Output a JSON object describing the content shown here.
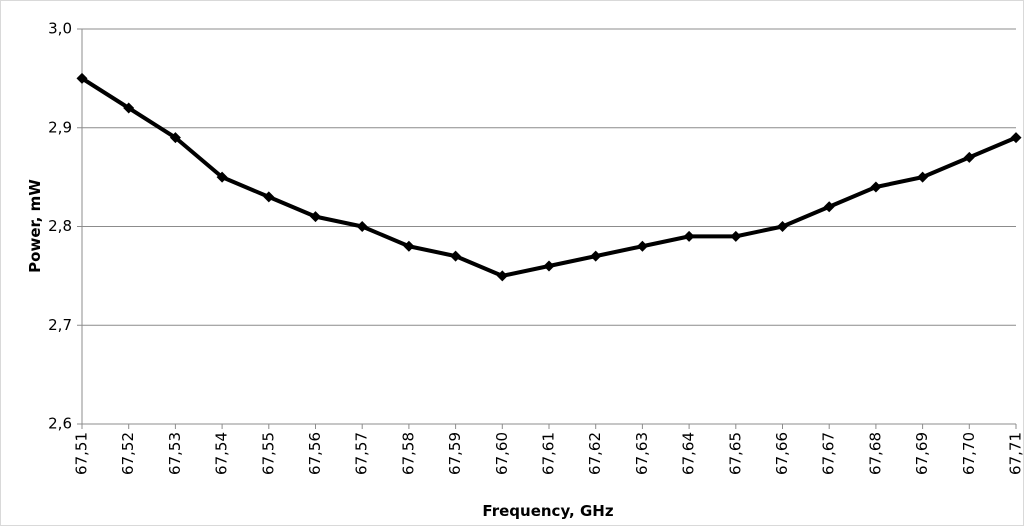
{
  "chart_data": {
    "type": "line",
    "x_label": "Frequency, GHz",
    "y_label": "Power, mW",
    "categories": [
      "67,51",
      "67,52",
      "67,53",
      "67,54",
      "67,55",
      "67,56",
      "67,57",
      "67,58",
      "67,59",
      "67,60",
      "67,61",
      "67,62",
      "67,63",
      "67,64",
      "67,65",
      "67,66",
      "67,67",
      "67,68",
      "67,69",
      "67,70",
      "67,71"
    ],
    "values": [
      2.95,
      2.92,
      2.89,
      2.85,
      2.83,
      2.81,
      2.8,
      2.78,
      2.77,
      2.75,
      2.76,
      2.77,
      2.78,
      2.79,
      2.79,
      2.8,
      2.82,
      2.84,
      2.85,
      2.87,
      2.89
    ],
    "color": "#000000",
    "ylim": [
      2.6,
      3.0
    ],
    "yticks": [
      {
        "value": 2.6,
        "label": "2,6"
      },
      {
        "value": 2.7,
        "label": "2,7"
      },
      {
        "value": 2.8,
        "label": "2,8"
      },
      {
        "value": 2.9,
        "label": "2,9"
      },
      {
        "value": 3.0,
        "label": "3,0"
      }
    ],
    "grid": true
  }
}
